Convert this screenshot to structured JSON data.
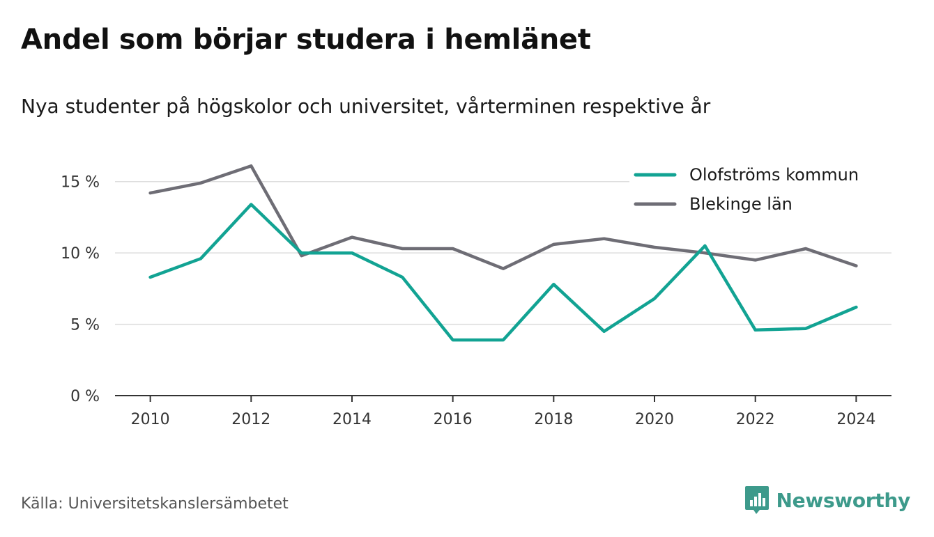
{
  "header": {
    "title": "Andel som börjar studera i hemlänet",
    "subtitle": "Nya studenter på högskolor och universitet, vårterminen respektive år"
  },
  "footer": {
    "source": "Källa: Universitetskanslersämbetet",
    "brand": "Newsworthy"
  },
  "colors": {
    "series_1": "#12a393",
    "series_2": "#6e6d75",
    "grid": "#dddddd",
    "axis": "#333333",
    "brand": "#3d9a8b"
  },
  "chart_data": {
    "type": "line",
    "x": [
      2010,
      2011,
      2012,
      2013,
      2014,
      2015,
      2016,
      2017,
      2018,
      2019,
      2020,
      2021,
      2022,
      2023,
      2024
    ],
    "x_tick_labels": [
      "2010",
      "2012",
      "2014",
      "2016",
      "2018",
      "2020",
      "2022",
      "2024"
    ],
    "y_tick_values": [
      0,
      5,
      10,
      15
    ],
    "y_tick_labels": [
      "0 %",
      "5 %",
      "10 %",
      "15 %"
    ],
    "xlim": [
      2009.3,
      2024.7
    ],
    "ylim": [
      0,
      16.5
    ],
    "grid": "horizontal",
    "legend_position": "top-right",
    "series": [
      {
        "name": "Olofströms kommun",
        "color": "#12a393",
        "values": [
          8.3,
          9.6,
          13.4,
          10.0,
          10.0,
          8.3,
          3.9,
          3.9,
          7.8,
          4.5,
          6.8,
          10.5,
          4.6,
          4.7,
          6.2
        ]
      },
      {
        "name": "Blekinge län",
        "color": "#6e6d75",
        "values": [
          14.2,
          14.9,
          16.1,
          9.8,
          11.1,
          10.3,
          10.3,
          8.9,
          10.6,
          11.0,
          10.4,
          10.0,
          9.5,
          10.3,
          9.1
        ]
      }
    ]
  }
}
